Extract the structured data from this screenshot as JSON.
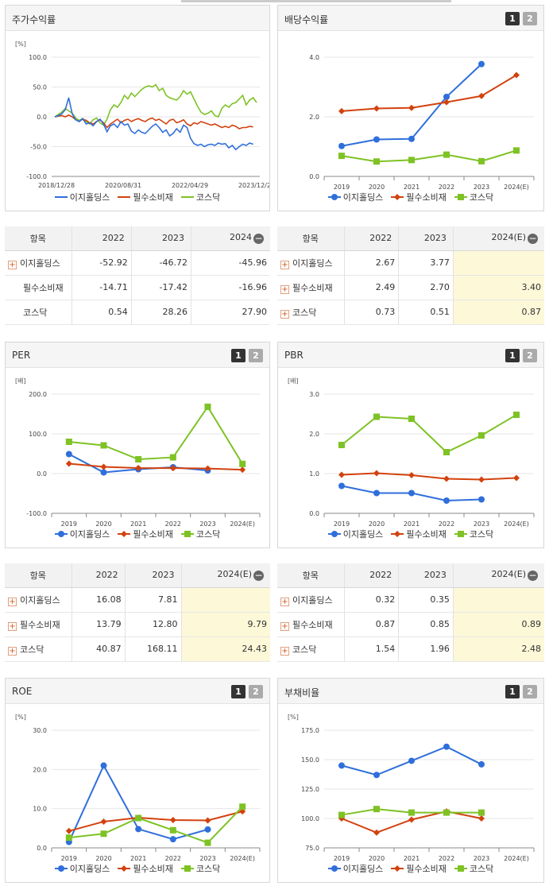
{
  "legend_names": [
    "이지홀딩스",
    "필수소비재",
    "코스닥"
  ],
  "colors": {
    "ez": "#2f6fdb",
    "sector": "#d2420f",
    "kosdaq": "#7ec224"
  },
  "toggle": {
    "one": "1",
    "two": "2"
  },
  "panels": {
    "stock": {
      "title": "주가수익률"
    },
    "div": {
      "title": "배당수익률"
    },
    "per": {
      "title": "PER"
    },
    "pbr": {
      "title": "PBR"
    },
    "roe": {
      "title": "ROE"
    },
    "debt": {
      "title": "부채비율"
    }
  },
  "tables": {
    "stock": {
      "headers": [
        "항목",
        "2022",
        "2023",
        "2024"
      ],
      "rows": [
        {
          "name": "이지홀딩스",
          "expand": true,
          "v": [
            "-52.92",
            "-46.72",
            "-45.96"
          ]
        },
        {
          "name": "필수소비재",
          "expand": false,
          "v": [
            "-14.71",
            "-17.42",
            "-16.96"
          ]
        },
        {
          "name": "코스닥",
          "expand": false,
          "v": [
            "0.54",
            "28.26",
            "27.90"
          ]
        }
      ]
    },
    "div": {
      "headers": [
        "항목",
        "2022",
        "2023",
        "2024(E)"
      ],
      "rows": [
        {
          "name": "이지홀딩스",
          "expand": true,
          "v": [
            "2.67",
            "3.77",
            ""
          ]
        },
        {
          "name": "필수소비재",
          "expand": true,
          "v": [
            "2.49",
            "2.70",
            "3.40"
          ]
        },
        {
          "name": "코스닥",
          "expand": true,
          "v": [
            "0.73",
            "0.51",
            "0.87"
          ]
        }
      ]
    },
    "per": {
      "headers": [
        "항목",
        "2022",
        "2023",
        "2024(E)"
      ],
      "rows": [
        {
          "name": "이지홀딩스",
          "expand": true,
          "v": [
            "16.08",
            "7.81",
            ""
          ]
        },
        {
          "name": "필수소비재",
          "expand": true,
          "v": [
            "13.79",
            "12.80",
            "9.79"
          ]
        },
        {
          "name": "코스닥",
          "expand": true,
          "v": [
            "40.87",
            "168.11",
            "24.43"
          ]
        }
      ]
    },
    "pbr": {
      "headers": [
        "항목",
        "2022",
        "2023",
        "2024(E)"
      ],
      "rows": [
        {
          "name": "이지홀딩스",
          "expand": true,
          "v": [
            "0.32",
            "0.35",
            ""
          ]
        },
        {
          "name": "필수소비재",
          "expand": true,
          "v": [
            "0.87",
            "0.85",
            "0.89"
          ]
        },
        {
          "name": "코스닥",
          "expand": true,
          "v": [
            "1.54",
            "1.96",
            "2.48"
          ]
        }
      ]
    }
  },
  "chart_data": [
    {
      "id": "stock",
      "type": "line",
      "unit": "[%]",
      "ylim": [
        -100,
        100
      ],
      "yticks": [
        "100.0",
        "50.0",
        "0.0",
        "-50.0",
        "-100.0"
      ],
      "xticks": [
        "2018/12/28",
        "2020/08/31",
        "2022/04/29",
        "2023/12/28"
      ],
      "series": [
        {
          "name": "이지홀딩스",
          "values": [
            0,
            2,
            5,
            12,
            32,
            5,
            -5,
            -8,
            -3,
            -12,
            -10,
            -15,
            -8,
            -4,
            -12,
            -25,
            -15,
            -12,
            -18,
            -8,
            -14,
            -12,
            -24,
            -28,
            -22,
            -26,
            -28,
            -22,
            -16,
            -12,
            -18,
            -26,
            -22,
            -32,
            -28,
            -20,
            -26,
            -14,
            -18,
            -36,
            -45,
            -48,
            -46,
            -50,
            -47,
            -46,
            -48,
            -44,
            -46,
            -45,
            -52,
            -48,
            -55,
            -50,
            -46,
            -48,
            -44,
            -46
          ]
        },
        {
          "name": "필수소비재",
          "values": [
            0,
            1,
            2,
            0,
            3,
            0,
            -5,
            -8,
            -4,
            -6,
            -10,
            -12,
            -8,
            -5,
            -10,
            -18,
            -12,
            -8,
            -4,
            -10,
            -6,
            -4,
            -8,
            -5,
            -3,
            -6,
            -8,
            -4,
            -2,
            -6,
            -4,
            -8,
            -12,
            -6,
            -4,
            -10,
            -8,
            -5,
            -12,
            -15,
            -10,
            -12,
            -8,
            -10,
            -12,
            -14,
            -12,
            -15,
            -18,
            -16,
            -18,
            -14,
            -16,
            -20,
            -18,
            -18,
            -16,
            -17
          ]
        },
        {
          "name": "코스닥",
          "values": [
            0,
            4,
            8,
            14,
            10,
            6,
            -2,
            -6,
            -3,
            -8,
            -12,
            -5,
            -2,
            -10,
            -14,
            -4,
            12,
            20,
            16,
            24,
            36,
            30,
            40,
            34,
            40,
            46,
            50,
            52,
            50,
            54,
            44,
            48,
            36,
            32,
            30,
            28,
            34,
            44,
            38,
            42,
            30,
            18,
            8,
            4,
            6,
            10,
            2,
            0,
            14,
            20,
            16,
            22,
            24,
            30,
            36,
            20,
            28,
            32,
            24
          ]
        }
      ]
    },
    {
      "id": "div",
      "type": "line",
      "unit": "",
      "ylim": [
        0,
        4
      ],
      "yticks": [
        "4.0",
        "2.0",
        "0.0"
      ],
      "categories": [
        "2019",
        "2020",
        "2021",
        "2022",
        "2023",
        "2024(E)"
      ],
      "series": [
        {
          "name": "이지홀딩스",
          "values": [
            1.02,
            1.24,
            1.26,
            2.67,
            3.77,
            null
          ]
        },
        {
          "name": "필수소비재",
          "values": [
            2.19,
            2.28,
            2.3,
            2.49,
            2.7,
            3.4
          ]
        },
        {
          "name": "코스닥",
          "values": [
            0.69,
            0.5,
            0.55,
            0.73,
            0.51,
            0.87
          ]
        }
      ]
    },
    {
      "id": "per",
      "type": "line",
      "unit": "[배]",
      "ylim": [
        -100,
        200
      ],
      "yticks": [
        "200.0",
        "100.0",
        "0.0",
        "-100.0"
      ],
      "categories": [
        "2019",
        "2020",
        "2021",
        "2022",
        "2023",
        "2024(E)"
      ],
      "series": [
        {
          "name": "이지홀딩스",
          "values": [
            49,
            3,
            11,
            16.08,
            7.81,
            null
          ]
        },
        {
          "name": "필수소비재",
          "values": [
            25,
            17,
            14,
            13.79,
            12.8,
            9.79
          ]
        },
        {
          "name": "코스닥",
          "values": [
            80,
            71,
            36,
            40.87,
            168.11,
            24.43
          ]
        }
      ]
    },
    {
      "id": "pbr",
      "type": "line",
      "unit": "[배]",
      "ylim": [
        0,
        3
      ],
      "yticks": [
        "3.0",
        "2.0",
        "1.0",
        "0.0"
      ],
      "categories": [
        "2019",
        "2020",
        "2021",
        "2022",
        "2023",
        "2024(E)"
      ],
      "series": [
        {
          "name": "이지홀딩스",
          "values": [
            0.69,
            0.51,
            0.51,
            0.32,
            0.35,
            null
          ]
        },
        {
          "name": "필수소비재",
          "values": [
            0.97,
            1.01,
            0.96,
            0.87,
            0.85,
            0.89
          ]
        },
        {
          "name": "코스닥",
          "values": [
            1.72,
            2.43,
            2.38,
            1.54,
            1.96,
            2.48
          ]
        }
      ]
    },
    {
      "id": "roe",
      "type": "line",
      "unit": "[%]",
      "ylim": [
        0,
        30
      ],
      "yticks": [
        "30.0",
        "20.0",
        "10.0",
        "0.0"
      ],
      "categories": [
        "2019",
        "2020",
        "2021",
        "2022",
        "2023",
        "2024(E)"
      ],
      "series": [
        {
          "name": "이지홀딩스",
          "values": [
            1.5,
            21.0,
            4.8,
            2.2,
            4.7,
            null
          ]
        },
        {
          "name": "필수소비재",
          "values": [
            4.3,
            6.7,
            7.7,
            7.1,
            7.0,
            9.3
          ]
        },
        {
          "name": "코스닥",
          "values": [
            2.6,
            3.6,
            7.6,
            4.5,
            1.3,
            10.5
          ]
        }
      ]
    },
    {
      "id": "debt",
      "type": "line",
      "unit": "[%]",
      "ylim": [
        75,
        175
      ],
      "yticks": [
        "175.0",
        "150.0",
        "125.0",
        "100.0",
        "75.0"
      ],
      "categories": [
        "2019",
        "2020",
        "2021",
        "2022",
        "2023",
        "2024(E)"
      ],
      "series": [
        {
          "name": "이지홀딩스",
          "values": [
            145,
            137,
            149,
            161,
            146,
            null
          ]
        },
        {
          "name": "필수소비재",
          "values": [
            100,
            88,
            99,
            106,
            100,
            null
          ]
        },
        {
          "name": "코스닥",
          "values": [
            103,
            108,
            105,
            105,
            105,
            null
          ]
        }
      ]
    }
  ]
}
